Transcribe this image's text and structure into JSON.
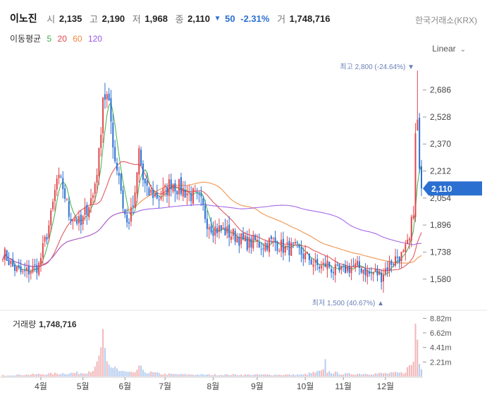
{
  "header": {
    "name": "이노진",
    "open_label": "시",
    "open": "2,135",
    "high_label": "고",
    "high": "2,190",
    "low_label": "저",
    "low": "1,968",
    "close_label": "종",
    "close": "2,110",
    "change_arrow": "▼",
    "change": "50",
    "change_pct": "-2.31%",
    "volume_label": "거",
    "volume": "1,748,716",
    "market": "한국거래소(KRX)"
  },
  "moving_average": {
    "label": "이동평균",
    "periods": [
      {
        "period": "5",
        "color": "#3fae49"
      },
      {
        "period": "20",
        "color": "#e0474c"
      },
      {
        "period": "60",
        "color": "#f08a3a"
      },
      {
        "period": "120",
        "color": "#9b59e6"
      }
    ]
  },
  "scale": {
    "label": "Linear"
  },
  "volume_panel": {
    "title": "거래량",
    "value": "1,748,716"
  },
  "annotations": {
    "max_text": "최고 2,800 (-24.64%) ▼",
    "min_text": "최저 1,500 (40.67%) ▲"
  },
  "colors": {
    "up": "#e0474c",
    "down": "#2b6fd1",
    "price_tag_bg": "#2b6fd1"
  },
  "chart_data": {
    "type": "line",
    "price_axis": {
      "ticks": [
        2686,
        2528,
        2370,
        2212,
        2054,
        1896,
        1738,
        1580
      ],
      "tick_labels": [
        "2,686",
        "2,528",
        "2,370",
        "2,212",
        "2,054",
        "1,896",
        "1,738",
        "1,580"
      ],
      "ylim": [
        1480,
        2800
      ]
    },
    "volume_axis": {
      "ticks": [
        8.82,
        6.62,
        4.41,
        2.21
      ],
      "tick_labels": [
        "8.82m",
        "6.62m",
        "4.41m",
        "2.21m"
      ],
      "ylim": [
        0,
        9.5
      ]
    },
    "x_months": [
      {
        "label": "4월",
        "day": 19
      },
      {
        "label": "5월",
        "day": 40
      },
      {
        "label": "6월",
        "day": 61
      },
      {
        "label": "7월",
        "day": 81
      },
      {
        "label": "8월",
        "day": 105
      },
      {
        "label": "9월",
        "day": 127
      },
      {
        "label": "10월",
        "day": 151
      },
      {
        "label": "11월",
        "day": 170
      },
      {
        "label": "12월",
        "day": 191
      }
    ],
    "current_price": {
      "value": 2110,
      "label": "2,110"
    },
    "max_point": {
      "day": 207,
      "value": 2800
    },
    "min_point": {
      "day": 190,
      "value": 1500
    },
    "price_anchors": [
      [
        0,
        1740
      ],
      [
        5,
        1650
      ],
      [
        10,
        1610
      ],
      [
        15,
        1640
      ],
      [
        18,
        1660
      ],
      [
        21,
        1800
      ],
      [
        24,
        1940
      ],
      [
        27,
        2160
      ],
      [
        30,
        2120
      ],
      [
        33,
        1960
      ],
      [
        36,
        1940
      ],
      [
        39,
        1890
      ],
      [
        42,
        2000
      ],
      [
        45,
        2070
      ],
      [
        48,
        2300
      ],
      [
        50,
        2660
      ],
      [
        52,
        2640
      ],
      [
        54,
        2500
      ],
      [
        56,
        2280
      ],
      [
        58,
        2200
      ],
      [
        60,
        2010
      ],
      [
        62,
        1900
      ],
      [
        64,
        1960
      ],
      [
        66,
        2050
      ],
      [
        68,
        2330
      ],
      [
        70,
        2160
      ],
      [
        72,
        2080
      ],
      [
        75,
        2080
      ],
      [
        78,
        2060
      ],
      [
        81,
        2090
      ],
      [
        84,
        2150
      ],
      [
        87,
        2120
      ],
      [
        90,
        2100
      ],
      [
        93,
        2080
      ],
      [
        96,
        2060
      ],
      [
        99,
        2020
      ],
      [
        102,
        1920
      ],
      [
        105,
        1880
      ],
      [
        108,
        1870
      ],
      [
        111,
        1860
      ],
      [
        114,
        1840
      ],
      [
        117,
        1830
      ],
      [
        120,
        1800
      ],
      [
        123,
        1790
      ],
      [
        126,
        1800
      ],
      [
        129,
        1780
      ],
      [
        132,
        1790
      ],
      [
        135,
        1800
      ],
      [
        138,
        1780
      ],
      [
        141,
        1760
      ],
      [
        144,
        1760
      ],
      [
        147,
        1750
      ],
      [
        150,
        1720
      ],
      [
        153,
        1700
      ],
      [
        156,
        1660
      ],
      [
        159,
        1650
      ],
      [
        162,
        1670
      ],
      [
        165,
        1630
      ],
      [
        168,
        1620
      ],
      [
        171,
        1640
      ],
      [
        174,
        1650
      ],
      [
        177,
        1650
      ],
      [
        180,
        1640
      ],
      [
        183,
        1610
      ],
      [
        186,
        1620
      ],
      [
        189,
        1600
      ],
      [
        191,
        1640
      ],
      [
        194,
        1680
      ],
      [
        197,
        1710
      ],
      [
        200,
        1720
      ],
      [
        203,
        1800
      ],
      [
        205,
        2000
      ],
      [
        206,
        2400
      ],
      [
        207,
        2500
      ],
      [
        208,
        2200
      ],
      [
        209,
        2110
      ]
    ],
    "volume_anchors": [
      [
        0,
        0.2
      ],
      [
        10,
        0.3
      ],
      [
        20,
        0.4
      ],
      [
        28,
        0.5
      ],
      [
        40,
        0.6
      ],
      [
        46,
        1.2
      ],
      [
        48,
        2.8
      ],
      [
        49,
        4.9
      ],
      [
        50,
        6.0
      ],
      [
        51,
        3.4
      ],
      [
        52,
        2.0
      ],
      [
        54,
        1.4
      ],
      [
        56,
        1.7
      ],
      [
        58,
        0.9
      ],
      [
        66,
        0.5
      ],
      [
        68,
        1.8
      ],
      [
        70,
        0.8
      ],
      [
        80,
        0.4
      ],
      [
        100,
        0.3
      ],
      [
        120,
        0.3
      ],
      [
        150,
        0.3
      ],
      [
        160,
        0.9
      ],
      [
        161,
        2.2
      ],
      [
        162,
        0.8
      ],
      [
        170,
        0.4
      ],
      [
        190,
        0.5
      ],
      [
        200,
        0.6
      ],
      [
        205,
        2.3
      ],
      [
        206,
        9.2
      ],
      [
        207,
        5.9
      ],
      [
        208,
        2.8
      ],
      [
        209,
        1.7
      ]
    ]
  }
}
